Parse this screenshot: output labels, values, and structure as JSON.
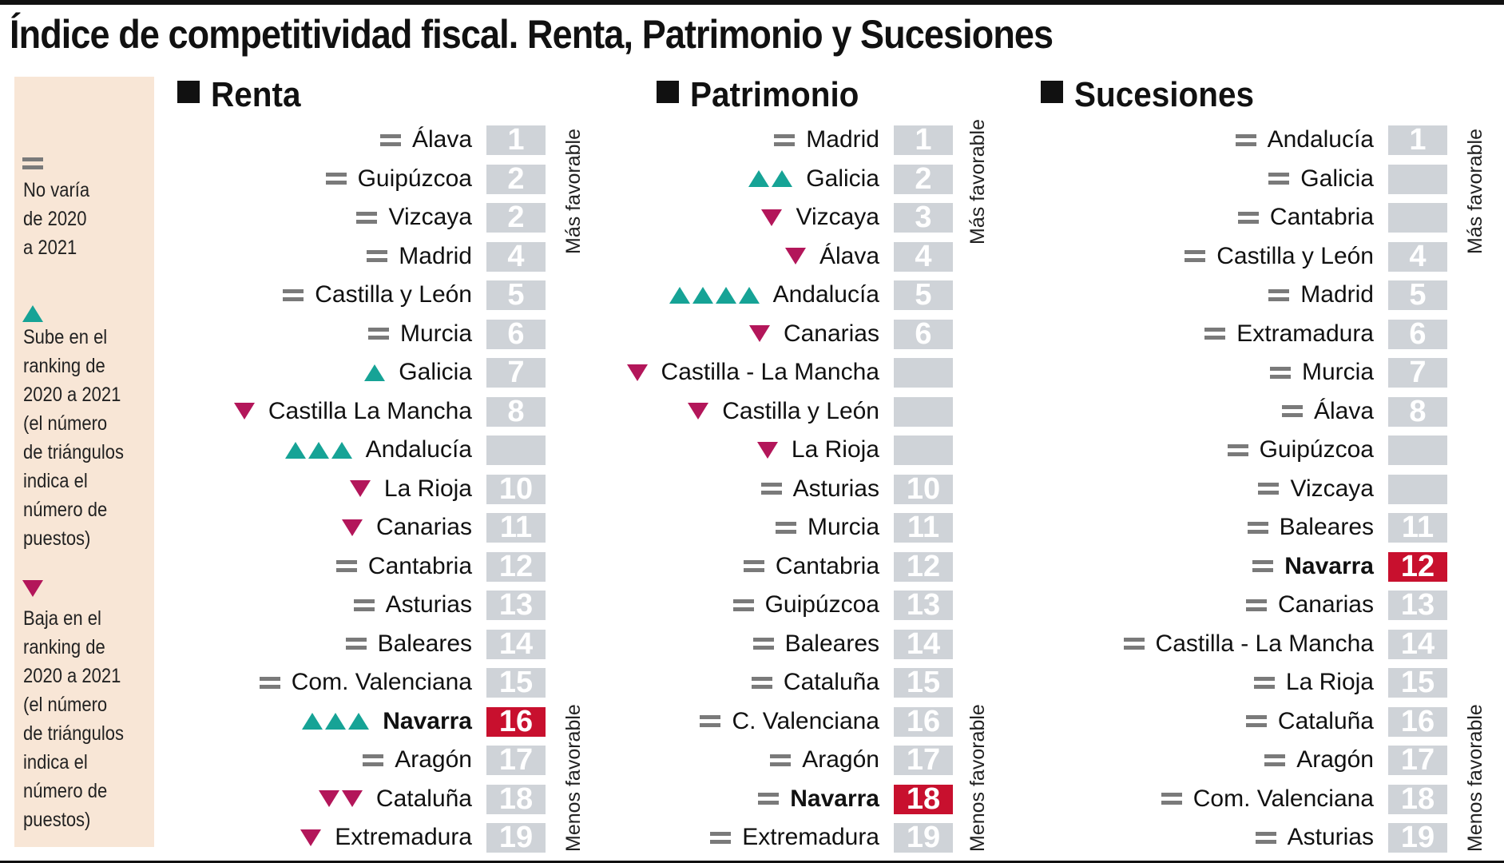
{
  "title": "Índice de competitividad fiscal. Renta, Patrimonio y Sucesiones",
  "legend": {
    "no_change": {
      "symbol": "equals-icon",
      "lines": [
        "No varía",
        "de 2020",
        "a 2021"
      ]
    },
    "up": {
      "symbol": "triangle-up-icon",
      "lines": [
        "Sube en el",
        "ranking de",
        "2020 a 2021",
        "(el número",
        "de triángulos",
        "indica el",
        "número de",
        "puestos)"
      ]
    },
    "down": {
      "symbol": "triangle-down-icon",
      "lines": [
        "Baja en el",
        "ranking de",
        "2020 a 2021",
        "(el número",
        "de triángulos",
        "indica el",
        "número de",
        "puestos)"
      ]
    }
  },
  "colors": {
    "up": "#16a396",
    "down": "#b3165a",
    "equal": "#7a7a7a",
    "rank_box": "#cfd3d8",
    "highlight": "#c8102e",
    "legend_bg": "#f8e6d6"
  },
  "chart_data": {
    "type": "table",
    "top_label": "Más favorable",
    "bottom_label": "Menos favorable",
    "panels": [
      {
        "name": "Renta",
        "rows": [
          {
            "region": "Álava",
            "rank": "1",
            "change": 0
          },
          {
            "region": "Guipúzcoa",
            "rank": "2",
            "change": 0
          },
          {
            "region": "Vizcaya",
            "rank": "2",
            "change": 0
          },
          {
            "region": "Madrid",
            "rank": "4",
            "change": 0
          },
          {
            "region": "Castilla y León",
            "rank": "5",
            "change": 0
          },
          {
            "region": "Murcia",
            "rank": "6",
            "change": 0
          },
          {
            "region": "Galicia",
            "rank": "7",
            "change": 1
          },
          {
            "region": "Castilla La Mancha",
            "rank": "8",
            "change": -1
          },
          {
            "region": "Andalucía",
            "rank": "",
            "change": 3
          },
          {
            "region": "La Rioja",
            "rank": "10",
            "change": -1
          },
          {
            "region": "Canarias",
            "rank": "11",
            "change": -1
          },
          {
            "region": "Cantabria",
            "rank": "12",
            "change": 0
          },
          {
            "region": "Asturias",
            "rank": "13",
            "change": 0
          },
          {
            "region": "Baleares",
            "rank": "14",
            "change": 0
          },
          {
            "region": "Com. Valenciana",
            "rank": "15",
            "change": 0
          },
          {
            "region": "Navarra",
            "rank": "16",
            "change": 3,
            "highlight": true
          },
          {
            "region": "Aragón",
            "rank": "17",
            "change": 0
          },
          {
            "region": "Cataluña",
            "rank": "18",
            "change": -2
          },
          {
            "region": "Extremadura",
            "rank": "19",
            "change": -1
          }
        ]
      },
      {
        "name": "Patrimonio",
        "rows": [
          {
            "region": "Madrid",
            "rank": "1",
            "change": 0
          },
          {
            "region": "Galicia",
            "rank": "2",
            "change": 2
          },
          {
            "region": "Vizcaya",
            "rank": "3",
            "change": -1
          },
          {
            "region": "Álava",
            "rank": "4",
            "change": -1
          },
          {
            "region": "Andalucía",
            "rank": "5",
            "change": 4
          },
          {
            "region": "Canarias",
            "rank": "6",
            "change": -1
          },
          {
            "region": "Castilla - La Mancha",
            "rank": "",
            "change": -1
          },
          {
            "region": "Castilla y León",
            "rank": "",
            "change": -1
          },
          {
            "region": "La Rioja",
            "rank": "",
            "change": -1
          },
          {
            "region": "Asturias",
            "rank": "10",
            "change": 0
          },
          {
            "region": "Murcia",
            "rank": "11",
            "change": 0
          },
          {
            "region": "Cantabria",
            "rank": "12",
            "change": 0
          },
          {
            "region": "Guipúzcoa",
            "rank": "13",
            "change": 0
          },
          {
            "region": "Baleares",
            "rank": "14",
            "change": 0
          },
          {
            "region": "Cataluña",
            "rank": "15",
            "change": 0
          },
          {
            "region": "C. Valenciana",
            "rank": "16",
            "change": 0
          },
          {
            "region": "Aragón",
            "rank": "17",
            "change": 0
          },
          {
            "region": "Navarra",
            "rank": "18",
            "change": 0,
            "highlight": true
          },
          {
            "region": "Extremadura",
            "rank": "19",
            "change": 0
          }
        ]
      },
      {
        "name": "Sucesiones",
        "rows": [
          {
            "region": "Andalucía",
            "rank": "1",
            "change": 0
          },
          {
            "region": "Galicia",
            "rank": "",
            "change": 0
          },
          {
            "region": "Cantabria",
            "rank": "",
            "change": 0
          },
          {
            "region": "Castilla y León",
            "rank": "4",
            "change": 0
          },
          {
            "region": "Madrid",
            "rank": "5",
            "change": 0
          },
          {
            "region": "Extramadura",
            "rank": "6",
            "change": 0
          },
          {
            "region": "Murcia",
            "rank": "7",
            "change": 0
          },
          {
            "region": "Álava",
            "rank": "8",
            "change": 0
          },
          {
            "region": "Guipúzcoa",
            "rank": "",
            "change": 0
          },
          {
            "region": "Vizcaya",
            "rank": "",
            "change": 0
          },
          {
            "region": "Baleares",
            "rank": "11",
            "change": 0
          },
          {
            "region": "Navarra",
            "rank": "12",
            "change": 0,
            "highlight": true
          },
          {
            "region": "Canarias",
            "rank": "13",
            "change": 0
          },
          {
            "region": "Castilla - La Mancha",
            "rank": "14",
            "change": 0
          },
          {
            "region": "La Rioja",
            "rank": "15",
            "change": 0
          },
          {
            "region": "Cataluña",
            "rank": "16",
            "change": 0
          },
          {
            "region": "Aragón",
            "rank": "17",
            "change": 0
          },
          {
            "region": "Com. Valenciana",
            "rank": "18",
            "change": 0
          },
          {
            "region": "Asturias",
            "rank": "19",
            "change": 0
          }
        ]
      }
    ]
  }
}
